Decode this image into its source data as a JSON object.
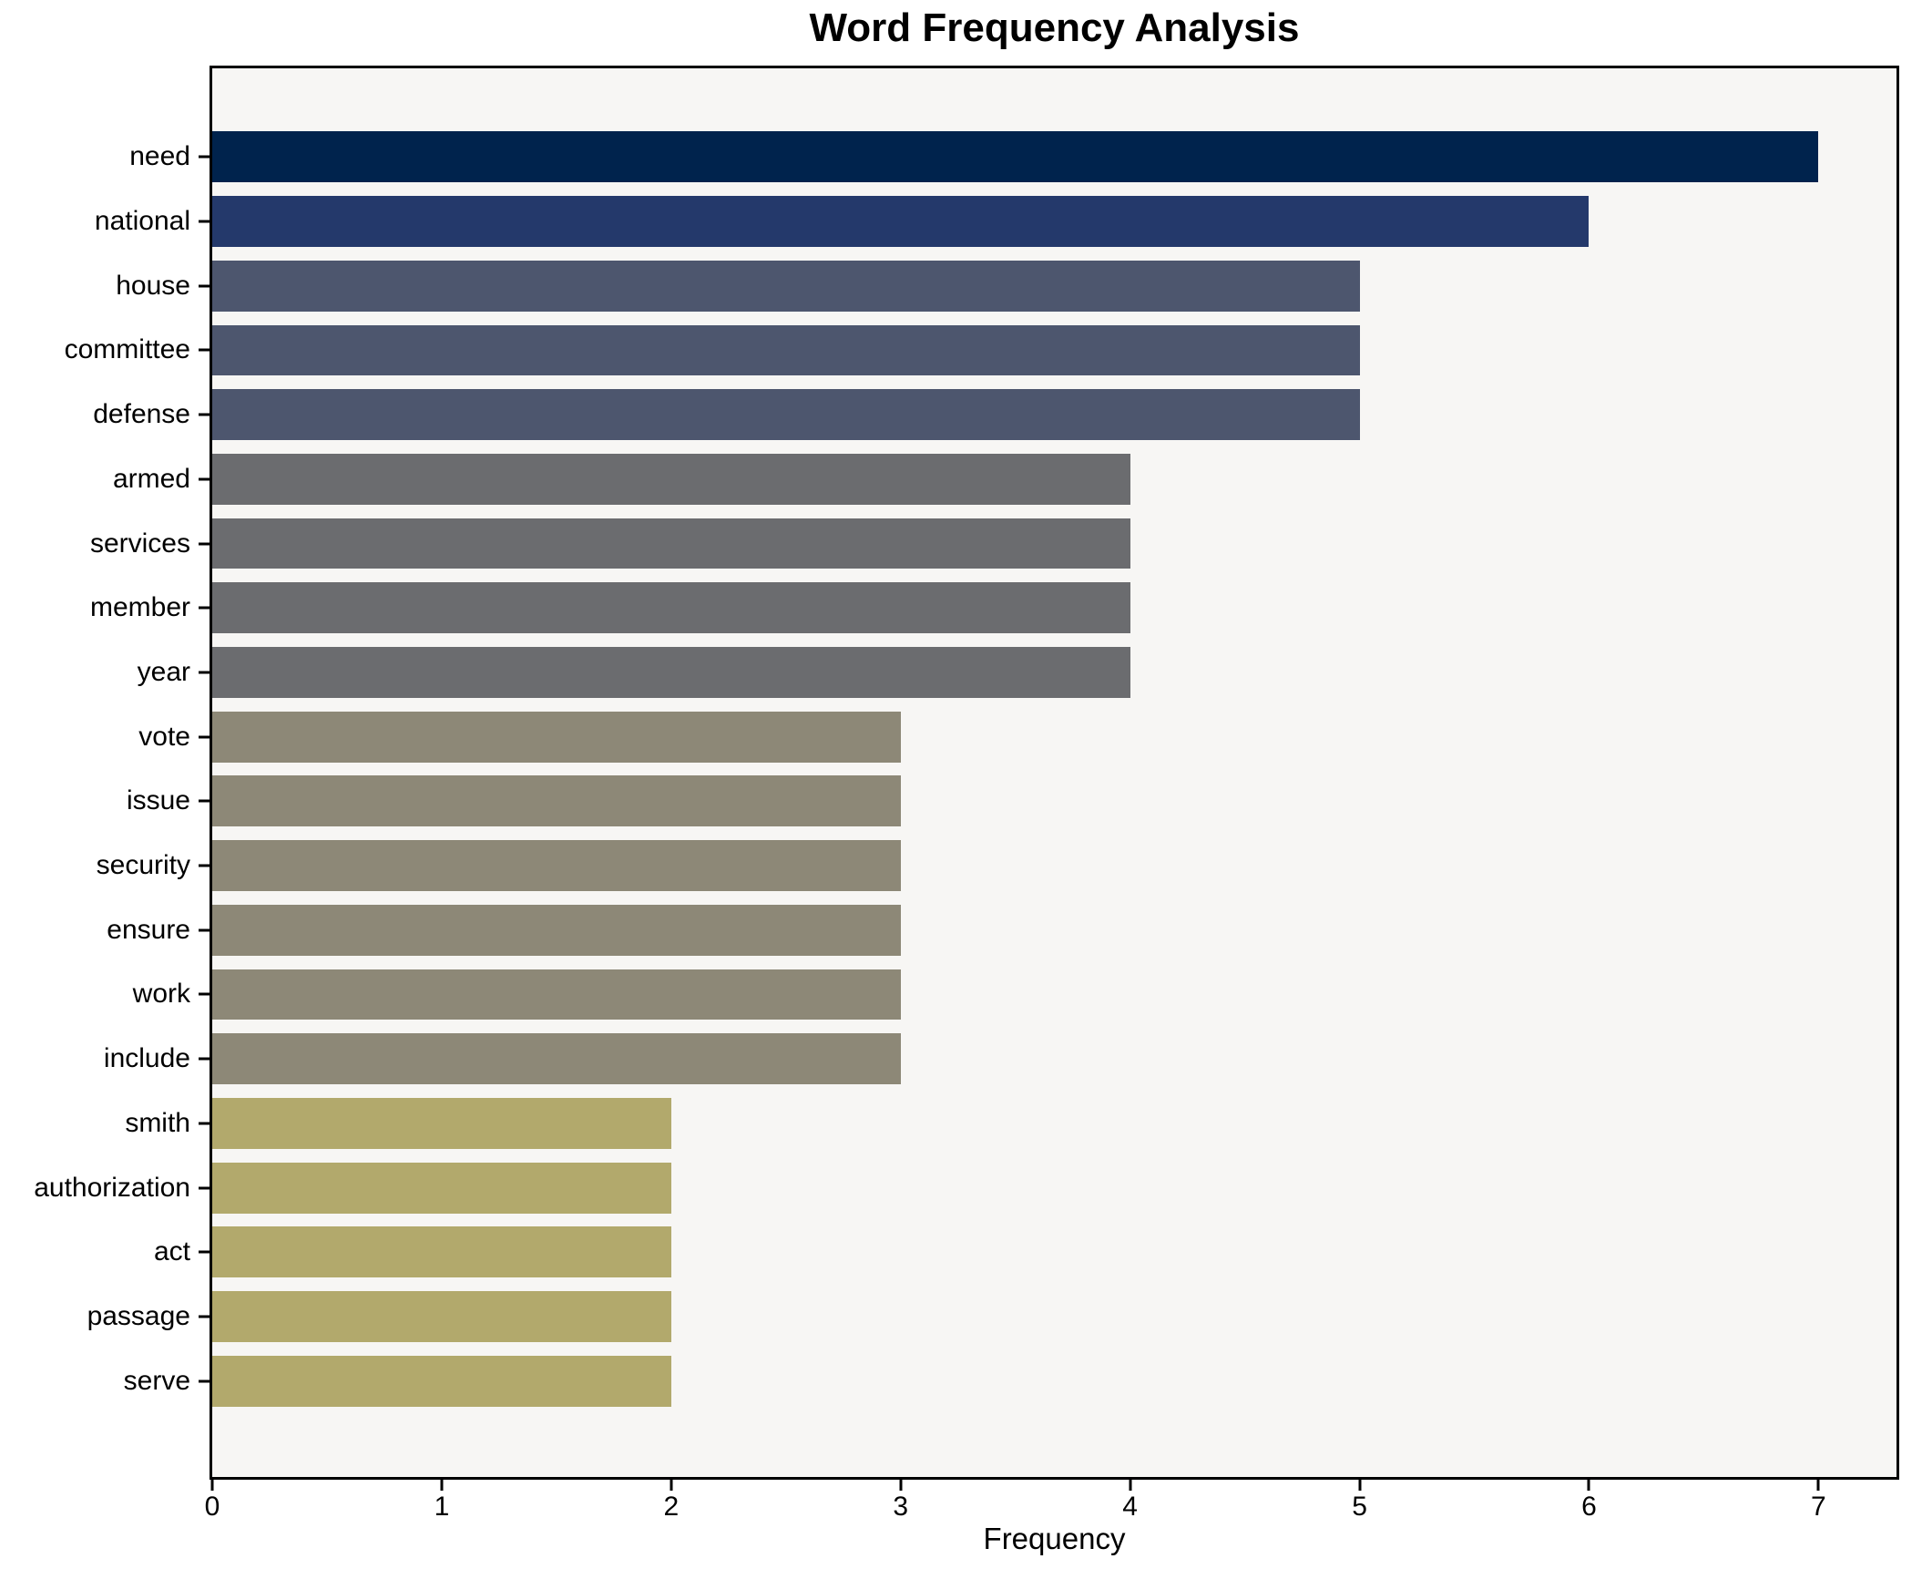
{
  "chart_data": {
    "type": "bar",
    "orientation": "horizontal",
    "title": "Word Frequency Analysis",
    "xlabel": "Frequency",
    "ylabel": "",
    "categories": [
      "need",
      "national",
      "house",
      "committee",
      "defense",
      "armed",
      "services",
      "member",
      "year",
      "vote",
      "issue",
      "security",
      "ensure",
      "work",
      "include",
      "smith",
      "authorization",
      "act",
      "passage",
      "serve"
    ],
    "values": [
      7,
      6,
      5,
      5,
      5,
      4,
      4,
      4,
      4,
      3,
      3,
      3,
      3,
      3,
      3,
      2,
      2,
      2,
      2,
      2
    ],
    "xlim": [
      0,
      7.34
    ],
    "xticks": [
      0,
      1,
      2,
      3,
      4,
      5,
      6,
      7
    ],
    "grid": false,
    "legend": "none",
    "bar_colors_by_value": {
      "7": "#00234d",
      "6": "#24396b",
      "5": "#4d566e",
      "4": "#6b6c6f",
      "3": "#8d8877",
      "2": "#b2a96c"
    },
    "colors": {
      "figure_bg": "#ffffff",
      "plot_bg": "#f7f6f4",
      "axis": "#000000",
      "text": "#000000"
    }
  }
}
